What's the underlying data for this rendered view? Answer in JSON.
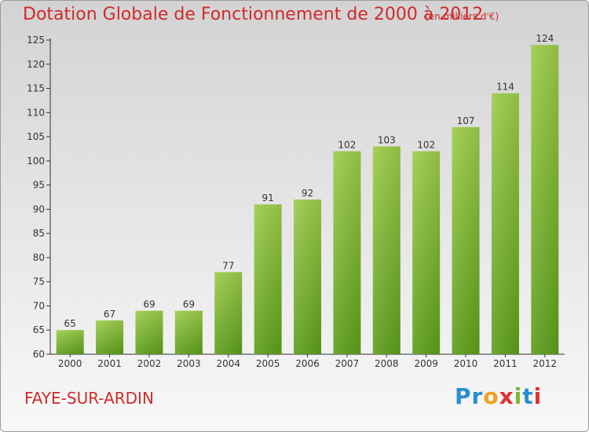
{
  "title": "Dotation Globale de Fonctionnement de 2000 à 2012",
  "subtitle": "(en milliers d'€)",
  "commune": "FAYE-SUR-ARDIN",
  "logo": {
    "letters": [
      "P",
      "r",
      "o",
      "x",
      "i",
      "t",
      "i"
    ],
    "colors": [
      "#2a8fd0",
      "#2a8fd0",
      "#f0a020",
      "#e03030",
      "#7ab830",
      "#2a8fd0",
      "#e03030"
    ]
  },
  "colors": {
    "bar_light": "#9ccc4a",
    "bar_dark": "#5c9e1a",
    "title": "#d02a2a"
  },
  "chart_data": {
    "type": "bar",
    "categories": [
      "2000",
      "2001",
      "2002",
      "2003",
      "2004",
      "2005",
      "2006",
      "2007",
      "2008",
      "2009",
      "2010",
      "2011",
      "2012"
    ],
    "values": [
      65,
      67,
      69,
      69,
      77,
      91,
      92,
      102,
      103,
      102,
      107,
      114,
      124
    ],
    "ylim": [
      60,
      125
    ],
    "yticks": [
      60,
      65,
      70,
      75,
      80,
      85,
      90,
      95,
      100,
      105,
      110,
      115,
      120,
      125
    ],
    "grid": false,
    "data_labels": true
  }
}
